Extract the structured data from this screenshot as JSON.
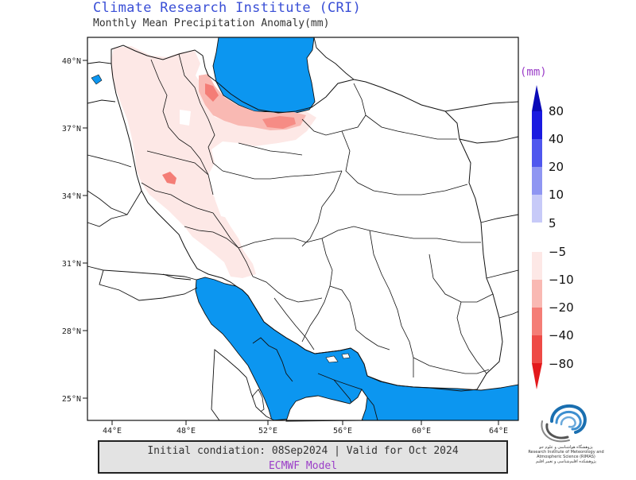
{
  "header": {
    "title": "Climate Research Institute (CRI)",
    "subtitle": "Monthly Mean Precipitation Anomaly(mm)"
  },
  "map": {
    "lat_labels": [
      "40°N",
      "37°N",
      "34°N",
      "31°N",
      "28°N",
      "25°N"
    ],
    "lon_labels": [
      "44°E",
      "48°E",
      "52°E",
      "56°E",
      "60°E",
      "64°E"
    ],
    "sea_color": "#0c96f0",
    "land_color": "#ffffff",
    "anomaly_regions": [
      {
        "region": "north-west and west Iran",
        "class": "-5 to -10"
      },
      {
        "region": "Caspian coast (Gilan, Mazandaran)",
        "class": "-10 to -20"
      },
      {
        "region": "Lorestan / Kermanshah spot",
        "class": "-10 to -20"
      }
    ]
  },
  "colorbar": {
    "unit": "(mm)",
    "positive": [
      {
        "label": "80",
        "color": "#1a1ae0"
      },
      {
        "label": "40",
        "color": "#4f57ee"
      },
      {
        "label": "20",
        "color": "#8f96f2"
      },
      {
        "label": "10",
        "color": "#c7caf8"
      },
      {
        "label": "5",
        "color": "#e8e8fc"
      }
    ],
    "negative": [
      {
        "label": "−5",
        "color": "#fde8e6"
      },
      {
        "label": "−10",
        "color": "#f9b9b3"
      },
      {
        "label": "−20",
        "color": "#f47d76"
      },
      {
        "label": "−40",
        "color": "#ee4a46"
      },
      {
        "label": "−80",
        "color": "#e3191c"
      }
    ]
  },
  "footer": {
    "line1": "Initial condiation: 08Sep2024 | Valid for Oct 2024",
    "line2": "ECMWF Model"
  },
  "logo": {
    "icon": "cri-logo-icon",
    "text_line1": "پژوهشگاه هواشناسی و علوم جو",
    "text_line2": "Research Institute of Meteorology and Atmospheric Science (RIMAS)",
    "text_line3": "پژوهشکده اقلیم‌شناسی و تغییر اقلیم"
  }
}
